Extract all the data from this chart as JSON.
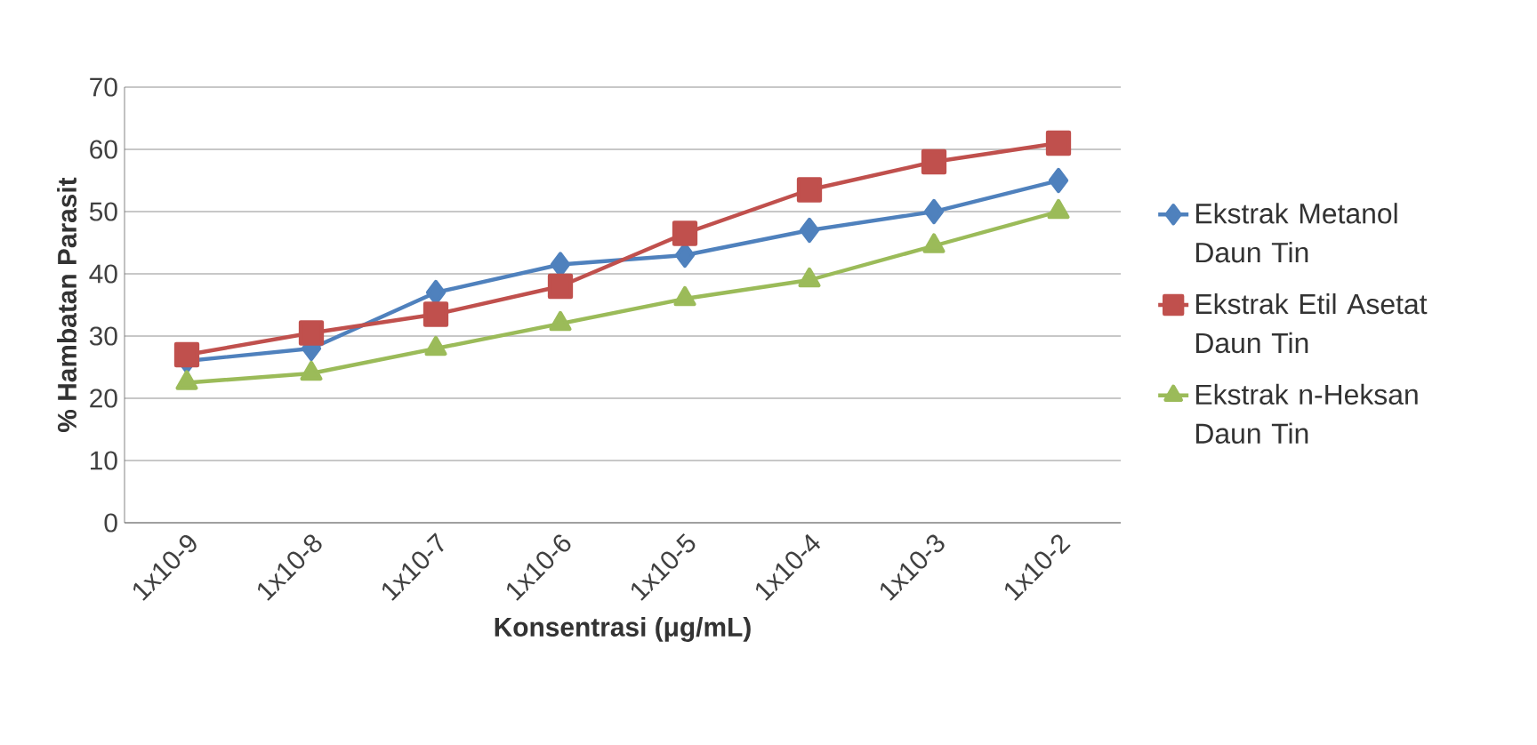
{
  "chart_data": {
    "type": "line",
    "xlabel": "Konsentrasi (μg/mL)",
    "ylabel": "% Hambatan Parasit",
    "categories": [
      "1x10-9",
      "1x10-8",
      "1x10-7",
      "1x10-6",
      "1x10-5",
      "1x10-4",
      "1x10-3",
      "1x10-2"
    ],
    "series": [
      {
        "name": "Ekstrak Metanol Daun Tin",
        "color": "#4f81bd",
        "marker": "diamond",
        "values": [
          26,
          28,
          37,
          41.5,
          43,
          47,
          50,
          55
        ]
      },
      {
        "name": "Ekstrak Etil Asetat Daun Tin",
        "color": "#c0504d",
        "marker": "square",
        "values": [
          27,
          30.5,
          33.5,
          38,
          46.5,
          53.5,
          58,
          61
        ]
      },
      {
        "name": "Ekstrak n-Heksan Daun Tin",
        "color": "#9bbb59",
        "marker": "triangle",
        "values": [
          22.5,
          24,
          28,
          32,
          36,
          39,
          44.5,
          50
        ]
      }
    ],
    "ylim": [
      0,
      70
    ],
    "yticks": [
      0,
      10,
      20,
      30,
      40,
      50,
      60,
      70
    ],
    "grid": "y",
    "legend": "right",
    "line_style": "solid"
  }
}
